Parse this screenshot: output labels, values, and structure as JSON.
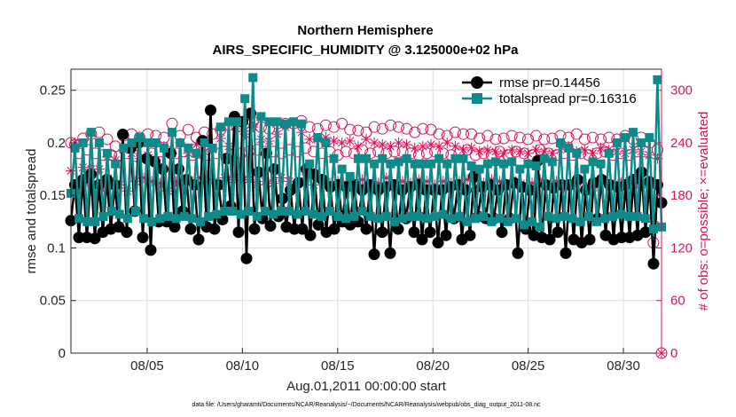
{
  "chart_data": {
    "type": "line",
    "title": "Northern Hemisphere",
    "subtitle": "AIRS_SPECIFIC_HUMIDITY @ 3.125000e+02 hPa",
    "xlabel": "Aug.01,2011 00:00:00 start",
    "ylabel": "rmse and totalspread",
    "ylabel_right": "# of obs: o=possible; ×=evaluated",
    "footnote": "data file: /Users/gharamti/Documents/NCAR/Reanalysis/~/Documents/NCAR/Reanalysis/webpub/obs_diag_output_2011-08.nc",
    "x_ticks": [
      {
        "day": 5,
        "label": "08/05"
      },
      {
        "day": 10,
        "label": "08/10"
      },
      {
        "day": 15,
        "label": "08/15"
      },
      {
        "day": 20,
        "label": "08/20"
      },
      {
        "day": 25,
        "label": "08/25"
      },
      {
        "day": 30,
        "label": "08/30"
      }
    ],
    "xlim_days": [
      1.0,
      32.0
    ],
    "y_ticks": [
      "0",
      "0.05",
      "0.1",
      "0.15",
      "0.2",
      "0.25"
    ],
    "ylim": [
      0,
      0.27
    ],
    "y2_ticks": [
      "0",
      "60",
      "120",
      "180",
      "240",
      "300"
    ],
    "y2lim": [
      0,
      324
    ],
    "grid": true,
    "legend_position": "top-right",
    "colors": {
      "rmse": "#000000",
      "totalspread": "#0f8a8a",
      "obs": "#d8135a",
      "axis_right": "#d8135a"
    },
    "series": [
      {
        "name": "rmse pr=0.14456",
        "marker": "filled-circle",
        "values": [
          0.126,
          0.16,
          0.11,
          0.165,
          0.11,
          0.17,
          0.109,
          0.16,
          0.115,
          0.165,
          0.118,
          0.16,
          0.12,
          0.208,
          0.115,
          0.195,
          0.135,
          0.2,
          0.11,
          0.185,
          0.098,
          0.182,
          0.125,
          0.175,
          0.125,
          0.19,
          0.12,
          0.175,
          0.135,
          0.165,
          0.118,
          0.16,
          0.108,
          0.202,
          0.12,
          0.231,
          0.118,
          0.16,
          0.127,
          0.185,
          0.14,
          0.225,
          0.115,
          0.22,
          0.09,
          0.228,
          0.118,
          0.172,
          0.128,
          0.19,
          0.121,
          0.175,
          0.13,
          0.147,
          0.12,
          0.155,
          0.118,
          0.162,
          0.118,
          0.175,
          0.112,
          0.17,
          0.122,
          0.165,
          0.115,
          0.158,
          0.118,
          0.16,
          0.125,
          0.158,
          0.122,
          0.16,
          0.125,
          0.155,
          0.118,
          0.16,
          0.094,
          0.155,
          0.115,
          0.158,
          0.095,
          0.16,
          0.118,
          0.155,
          0.128,
          0.158,
          0.115,
          0.16,
          0.108,
          0.155,
          0.115,
          0.155,
          0.105,
          0.155,
          0.112,
          0.158,
          0.128,
          0.16,
          0.108,
          0.155,
          0.112,
          0.168,
          0.13,
          0.158,
          0.128,
          0.16,
          0.128,
          0.155,
          0.115,
          0.16,
          0.128,
          0.162,
          0.095,
          0.158,
          0.118,
          0.155,
          0.112,
          0.183,
          0.11,
          0.16,
          0.108,
          0.157,
          0.115,
          0.16,
          0.095,
          0.16,
          0.108,
          0.165,
          0.105,
          0.155,
          0.108,
          0.162,
          0.128,
          0.165,
          0.112,
          0.16,
          0.108,
          0.158,
          0.11,
          0.16,
          0.11,
          0.165,
          0.112,
          0.172,
          0.115,
          0.163,
          0.085,
          0.16,
          0.143
        ]
      },
      {
        "name": "totalspread pr=0.16316",
        "marker": "filled-square",
        "values": [
          0.152,
          0.195,
          0.128,
          0.2,
          0.125,
          0.21,
          0.125,
          0.2,
          0.13,
          0.19,
          0.135,
          0.18,
          0.132,
          0.195,
          0.128,
          0.2,
          0.135,
          0.205,
          0.128,
          0.2,
          0.125,
          0.2,
          0.128,
          0.195,
          0.13,
          0.21,
          0.128,
          0.2,
          0.13,
          0.195,
          0.128,
          0.19,
          0.125,
          0.2,
          0.13,
          0.195,
          0.132,
          0.215,
          0.135,
          0.22,
          0.135,
          0.22,
          0.132,
          0.242,
          0.135,
          0.262,
          0.13,
          0.225,
          0.135,
          0.22,
          0.132,
          0.22,
          0.135,
          0.218,
          0.135,
          0.22,
          0.132,
          0.218,
          0.135,
          0.18,
          0.132,
          0.205,
          0.13,
          0.2,
          0.135,
          0.185,
          0.13,
          0.175,
          0.128,
          0.168,
          0.13,
          0.185,
          0.135,
          0.185,
          0.13,
          0.18,
          0.128,
          0.185,
          0.13,
          0.18,
          0.125,
          0.182,
          0.128,
          0.185,
          0.13,
          0.18,
          0.13,
          0.18,
          0.128,
          0.18,
          0.13,
          0.185,
          0.132,
          0.18,
          0.128,
          0.185,
          0.13,
          0.185,
          0.125,
          0.178,
          0.128,
          0.175,
          0.13,
          0.18,
          0.125,
          0.182,
          0.128,
          0.18,
          0.125,
          0.182,
          0.128,
          0.175,
          0.122,
          0.18,
          0.125,
          0.178,
          0.12,
          0.185,
          0.13,
          0.182,
          0.128,
          0.2,
          0.13,
          0.195,
          0.128,
          0.19,
          0.125,
          0.175,
          0.13,
          0.182,
          0.125,
          0.18,
          0.128,
          0.19,
          0.13,
          0.2,
          0.132,
          0.205,
          0.13,
          0.21,
          0.13,
          0.2,
          0.128,
          0.205,
          0.118,
          0.26,
          0.12
        ]
      },
      {
        "name": "possible",
        "axis": "right",
        "marker": "open-circle",
        "values": [
          240,
          238,
          228,
          245,
          232,
          250,
          228,
          252,
          226,
          244,
          226,
          236,
          225,
          248,
          228,
          250,
          225,
          246,
          232,
          250,
          228,
          248,
          230,
          246,
          230,
          262,
          228,
          248,
          230,
          255,
          226,
          246,
          228,
          252,
          226,
          250,
          228,
          255,
          230,
          260,
          226,
          258,
          228,
          262,
          230,
          264,
          232,
          258,
          230,
          256,
          230,
          262,
          228,
          262,
          232,
          262,
          230,
          265,
          234,
          258,
          230,
          256,
          228,
          260,
          230,
          258,
          226,
          262,
          230,
          255,
          228,
          254,
          232,
          252,
          228,
          258,
          230,
          256,
          228,
          260,
          230,
          258,
          230,
          256,
          228,
          252,
          226,
          256,
          228,
          255,
          230,
          250,
          228,
          248,
          226,
          252,
          228,
          250,
          232,
          250,
          226,
          245,
          228,
          248,
          226,
          244,
          230,
          245,
          226,
          248,
          230,
          246,
          228,
          244,
          226,
          248,
          232,
          244,
          228,
          245,
          226,
          248,
          228,
          246,
          226,
          250,
          228,
          244,
          226,
          246,
          228,
          244,
          230,
          246,
          226,
          244,
          228,
          248,
          226,
          244,
          230,
          246,
          230,
          240,
          126,
          232,
          0
        ]
      },
      {
        "name": "evaluated",
        "axis": "right",
        "marker": "asterisk",
        "values": [
          208,
          240,
          186,
          212,
          196,
          210,
          180,
          210,
          190,
          224,
          198,
          220,
          192,
          232,
          185,
          228,
          196,
          222,
          200,
          226,
          196,
          220,
          194,
          236,
          185,
          228,
          196,
          240,
          192,
          228,
          196,
          238,
          200,
          230,
          198,
          232,
          194,
          245,
          200,
          236,
          198,
          256,
          200,
          250,
          198,
          258,
          192,
          244,
          196,
          242,
          194,
          250,
          200,
          258,
          196,
          262,
          194,
          252,
          200,
          244,
          192,
          244,
          198,
          246,
          194,
          242,
          196,
          240,
          194,
          242,
          196,
          236,
          198,
          244,
          192,
          240,
          194,
          238,
          200,
          236,
          192,
          240,
          196,
          238,
          194,
          234,
          198,
          236,
          196,
          238,
          192,
          236,
          196,
          240,
          194,
          236,
          196,
          232,
          198,
          234,
          196,
          230,
          194,
          232,
          198,
          230,
          196,
          228,
          192,
          232,
          196,
          230,
          192,
          228,
          194,
          232,
          198,
          230,
          192,
          228,
          196,
          232,
          190,
          236,
          194,
          230,
          196,
          232,
          192,
          228,
          190,
          234,
          196,
          232,
          192,
          230,
          194,
          228,
          196,
          232,
          194,
          230,
          194,
          226,
          150,
          222,
          0
        ]
      }
    ]
  }
}
